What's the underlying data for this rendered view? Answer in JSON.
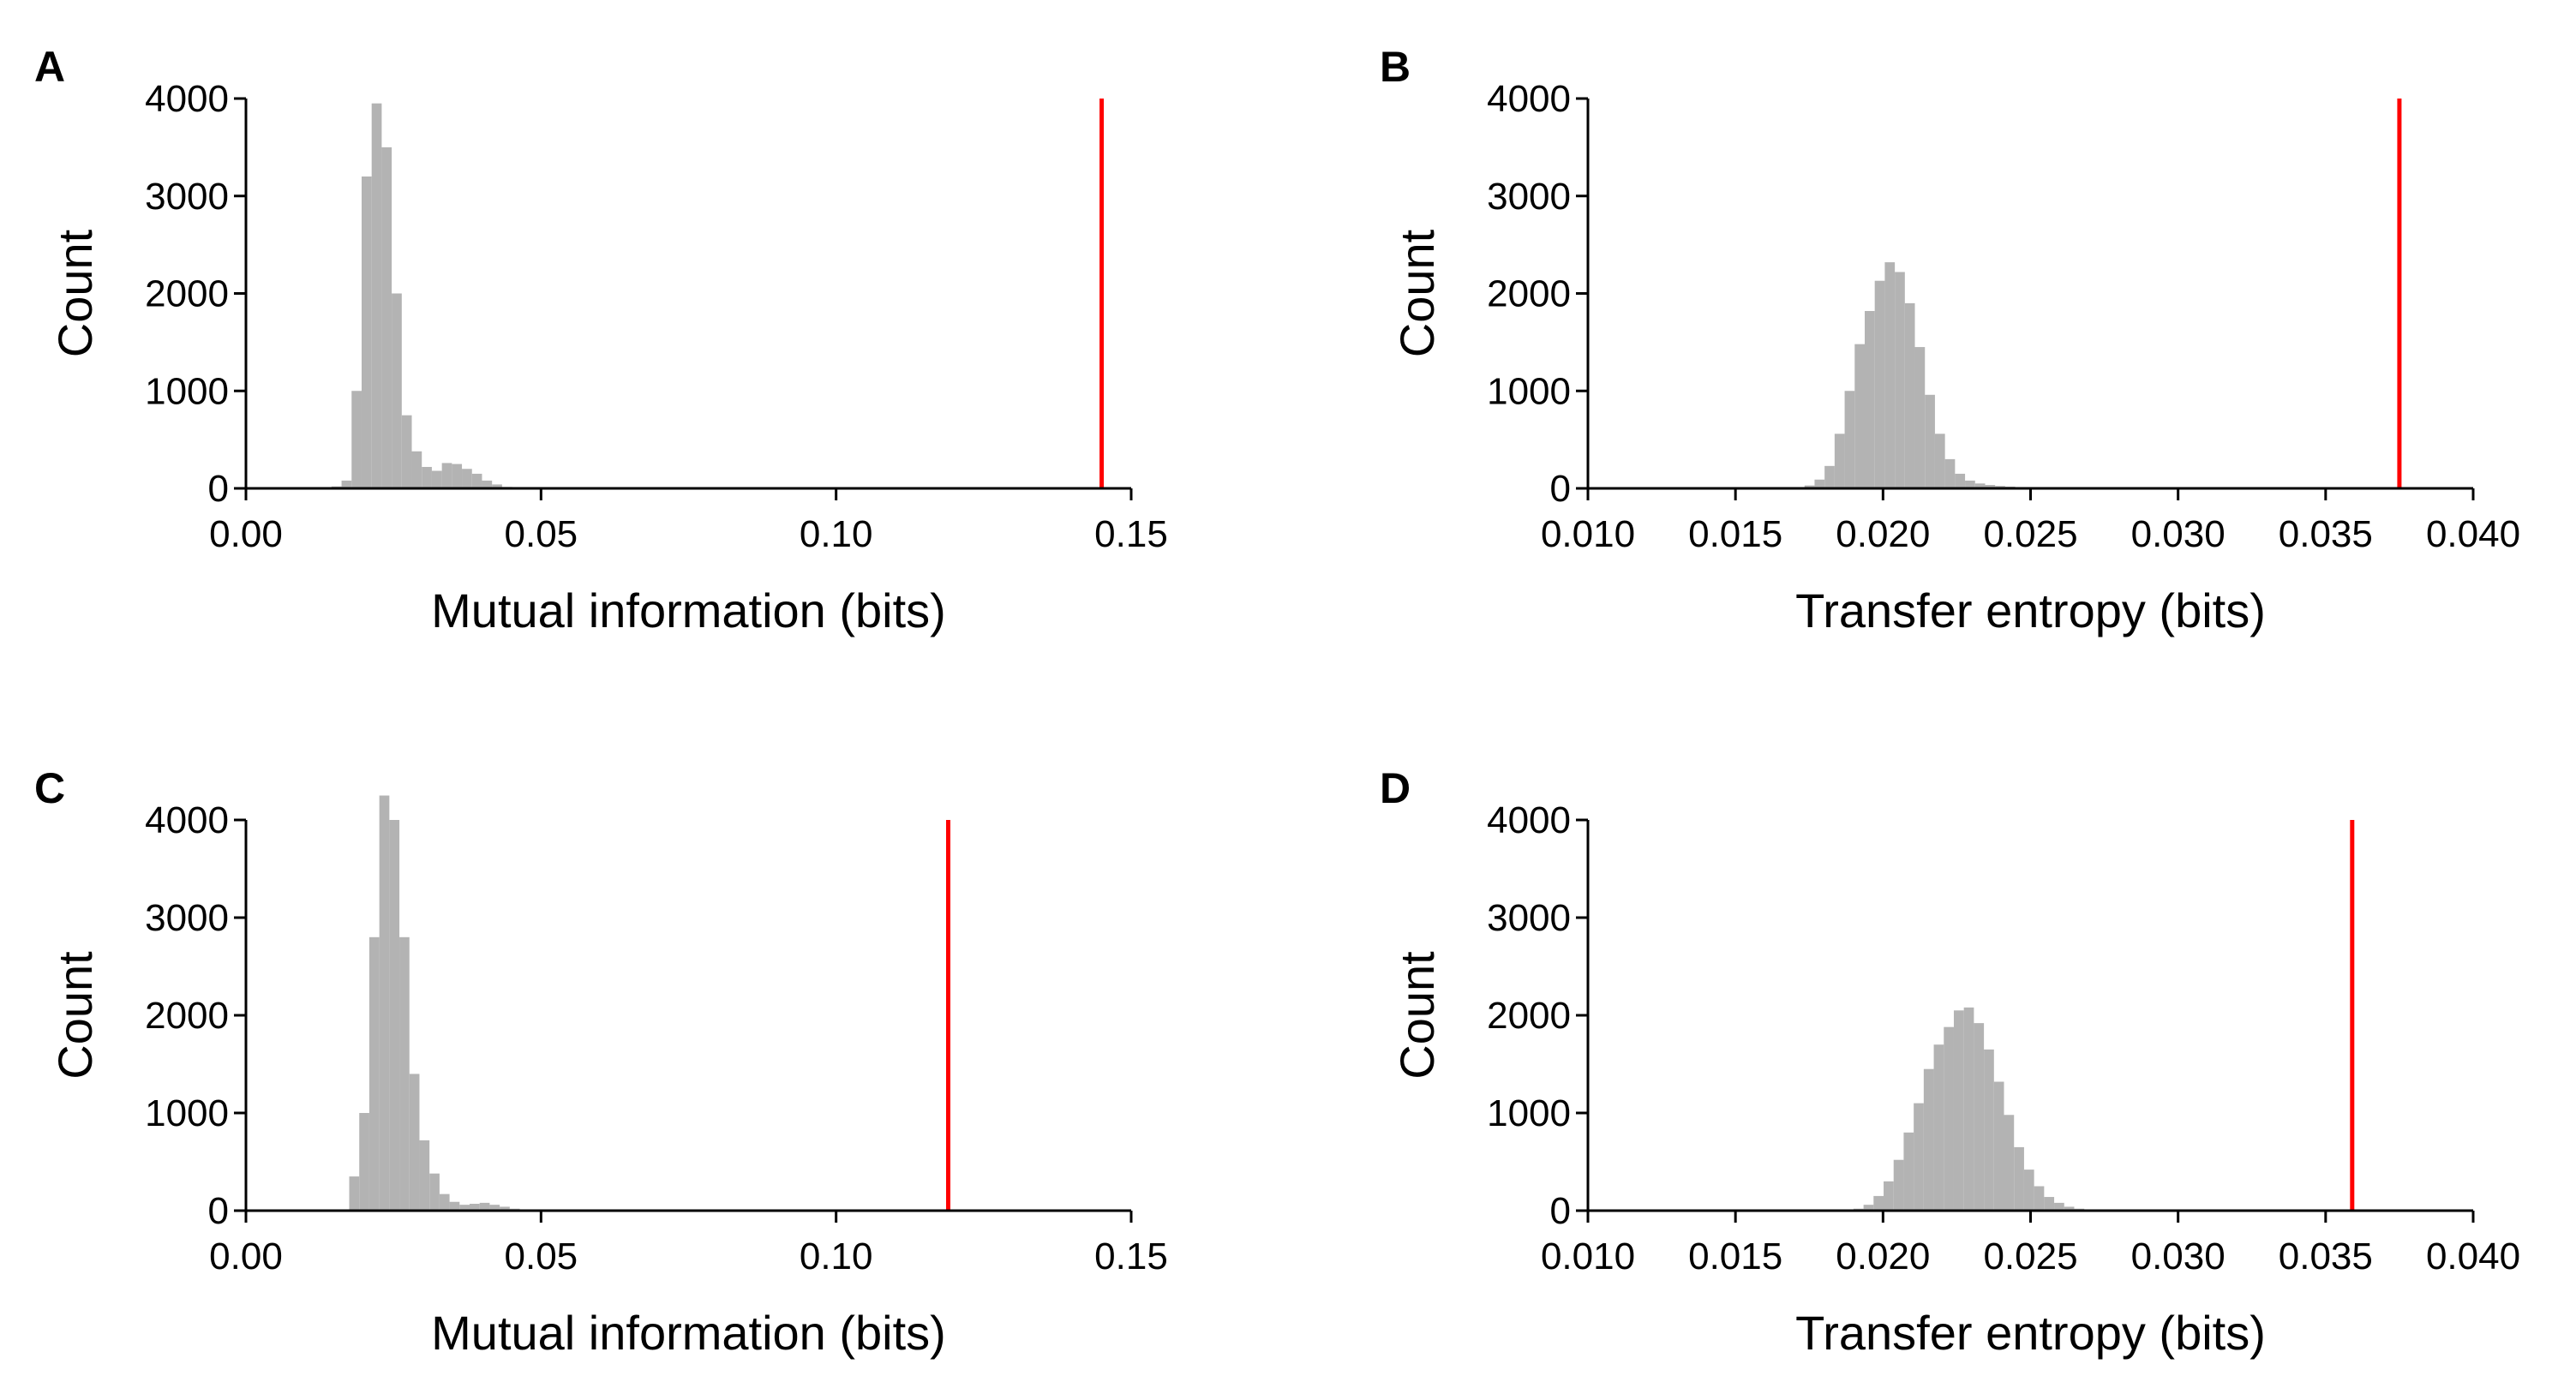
{
  "colors": {
    "histogram": "#b3b3b3",
    "marker": "#ff0000",
    "axis": "#000000"
  },
  "chart_data": [
    {
      "panel": "A",
      "type": "bar",
      "title": "",
      "xlabel": "Mutual information (bits)",
      "ylabel": "Count",
      "xlim": [
        0.0,
        0.15
      ],
      "ylim": [
        0,
        4000
      ],
      "xticks": [
        "0.00",
        "0.05",
        "0.10",
        "0.15"
      ],
      "xtick_values": [
        0.0,
        0.05,
        0.1,
        0.15
      ],
      "yticks": [
        "0",
        "1000",
        "2000",
        "3000",
        "4000"
      ],
      "ytick_values": [
        0,
        1000,
        2000,
        3000,
        4000
      ],
      "bin_width": 0.0017,
      "bin_start": 0.0145,
      "values": [
        20,
        80,
        1000,
        3200,
        3950,
        3500,
        2000,
        750,
        380,
        220,
        180,
        260,
        250,
        200,
        150,
        80,
        40,
        15,
        5
      ],
      "marker_x": 0.145,
      "marker_top": 4000,
      "grid": false
    },
    {
      "panel": "B",
      "type": "bar",
      "title": "",
      "xlabel": "Transfer entropy (bits)",
      "ylabel": "Count",
      "xlim": [
        0.01,
        0.04
      ],
      "ylim": [
        0,
        4000
      ],
      "xticks": [
        "0.010",
        "0.015",
        "0.020",
        "0.025",
        "0.030",
        "0.035",
        "0.040"
      ],
      "xtick_values": [
        0.01,
        0.015,
        0.02,
        0.025,
        0.03,
        0.035,
        0.04
      ],
      "yticks": [
        "0",
        "1000",
        "2000",
        "3000",
        "4000"
      ],
      "ytick_values": [
        0,
        1000,
        2000,
        3000,
        4000
      ],
      "bin_width": 0.00034,
      "bin_start": 0.017,
      "values": [
        10,
        30,
        90,
        230,
        560,
        1000,
        1480,
        1820,
        2130,
        2320,
        2220,
        1900,
        1450,
        960,
        560,
        300,
        150,
        80,
        50,
        35,
        25,
        18,
        12,
        8,
        5,
        3
      ],
      "marker_x": 0.0375,
      "marker_top": 4000,
      "grid": false
    },
    {
      "panel": "C",
      "type": "bar",
      "title": "",
      "xlabel": "Mutual information (bits)",
      "ylabel": "Count",
      "xlim": [
        0.0,
        0.15
      ],
      "ylim": [
        0,
        4000
      ],
      "xticks": [
        "0.00",
        "0.05",
        "0.10",
        "0.15"
      ],
      "xtick_values": [
        0.0,
        0.05,
        0.1,
        0.15
      ],
      "yticks": [
        "0",
        "1000",
        "2000",
        "3000",
        "4000"
      ],
      "ytick_values": [
        0,
        1000,
        2000,
        3000,
        4000
      ],
      "bin_width": 0.0017,
      "bin_start": 0.0175,
      "values": [
        350,
        1000,
        2800,
        4250,
        4000,
        2800,
        1400,
        720,
        380,
        170,
        90,
        60,
        70,
        80,
        60,
        40,
        20,
        10
      ],
      "marker_x": 0.119,
      "marker_top": 4000,
      "grid": false
    },
    {
      "panel": "D",
      "type": "bar",
      "title": "",
      "xlabel": "Transfer entropy (bits)",
      "ylabel": "Count",
      "xlim": [
        0.01,
        0.04
      ],
      "ylim": [
        0,
        4000
      ],
      "xticks": [
        "0.010",
        "0.015",
        "0.020",
        "0.025",
        "0.030",
        "0.035",
        "0.040"
      ],
      "xtick_values": [
        0.01,
        0.015,
        0.02,
        0.025,
        0.03,
        0.035,
        0.04
      ],
      "yticks": [
        "0",
        "1000",
        "2000",
        "3000",
        "4000"
      ],
      "ytick_values": [
        0,
        1000,
        2000,
        3000,
        4000
      ],
      "bin_width": 0.00034,
      "bin_start": 0.019,
      "values": [
        20,
        60,
        150,
        300,
        520,
        800,
        1100,
        1450,
        1700,
        1880,
        2050,
        2080,
        1920,
        1650,
        1320,
        980,
        650,
        420,
        250,
        140,
        80,
        40,
        20,
        10
      ],
      "marker_x": 0.0359,
      "marker_top": 4000,
      "grid": false
    }
  ]
}
